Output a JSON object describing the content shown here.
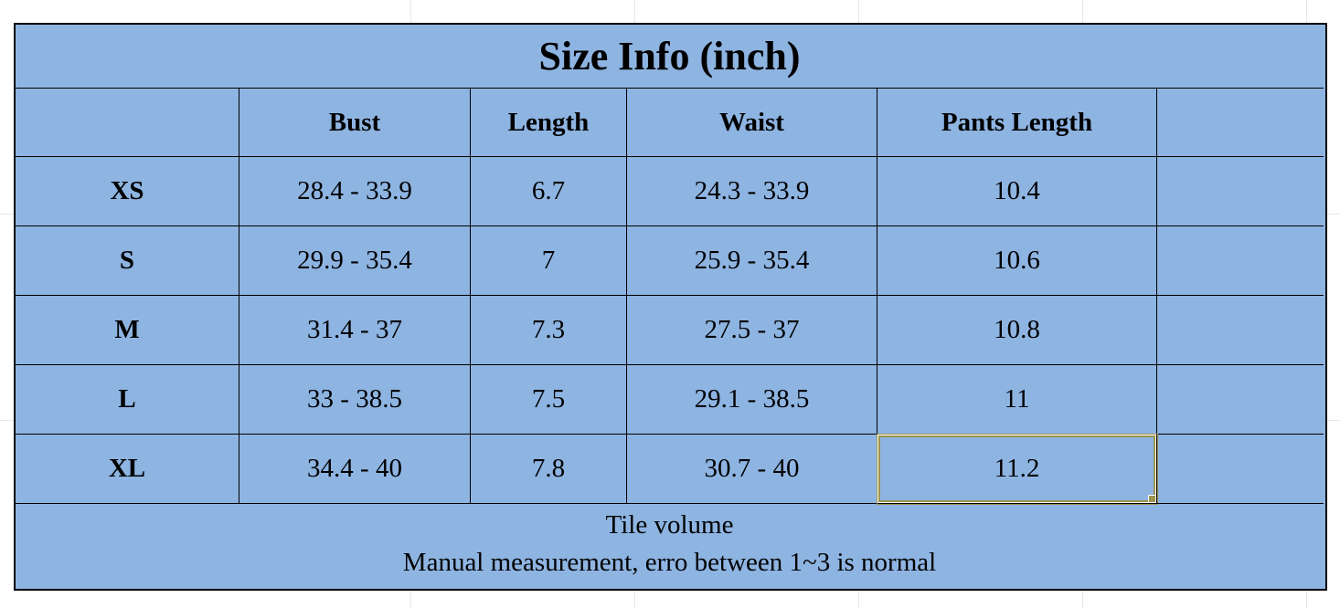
{
  "title": "Size Info (inch)",
  "columns": [
    "",
    "Bust",
    "Length",
    "Waist",
    "Pants Length",
    ""
  ],
  "rows": [
    {
      "size": "XS",
      "bust": "28.4 - 33.9",
      "length": "6.7",
      "waist": "24.3 - 33.9",
      "pants": "10.4"
    },
    {
      "size": "S",
      "bust": "29.9 - 35.4",
      "length": "7",
      "waist": "25.9 - 35.4",
      "pants": "10.6"
    },
    {
      "size": "M",
      "bust": "31.4 - 37",
      "length": "7.3",
      "waist": "27.5 - 37",
      "pants": "10.8"
    },
    {
      "size": "L",
      "bust": "33 - 38.5",
      "length": "7.5",
      "waist": "29.1 - 38.5",
      "pants": "11"
    },
    {
      "size": "XL",
      "bust": "34.4 - 40",
      "length": "7.8",
      "waist": "30.7 - 40",
      "pants": "11.2"
    }
  ],
  "footer": {
    "line1": "Tile volume",
    "line2": "Manual measurement, erro between 1~3 is normal"
  },
  "colors": {
    "fill": "#8EB4E2",
    "border": "#000000",
    "selection_border": "#9B944D"
  },
  "selection": {
    "row": "XL",
    "column": "Pants Length",
    "value": "11.2"
  }
}
